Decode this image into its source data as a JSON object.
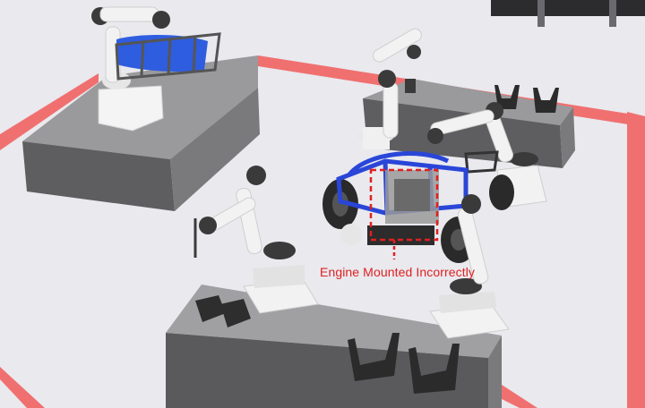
{
  "scene": {
    "description_label": "Robotic assembly cell",
    "annotation": {
      "label": "Engine Mounted Incorrectly",
      "color": "#e02020"
    },
    "colors": {
      "floor": "#e9e9ee",
      "safety_line": "#f07070",
      "pedestal_top": "#9a9a9c",
      "pedestal_side": "#5a5a5c",
      "robot_white": "#f2f2f2",
      "robot_dark": "#3a3a3a",
      "chassis_blue": "#2a46d8",
      "tire": "#2a2a2a"
    }
  }
}
